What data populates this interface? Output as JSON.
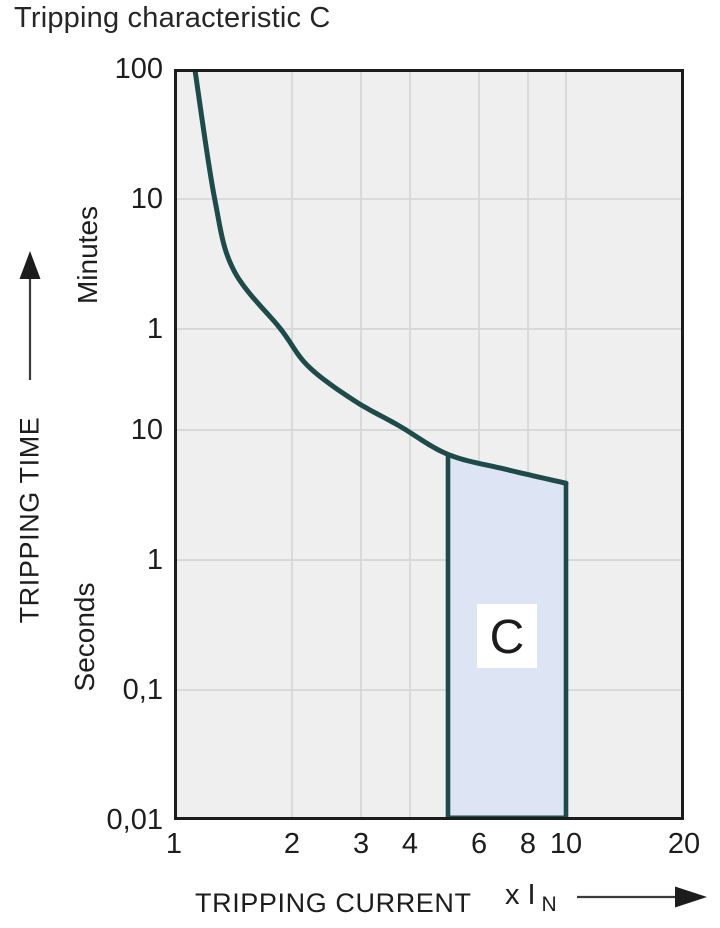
{
  "title": "Tripping characteristic C",
  "colors": {
    "curve": "#1e4b49",
    "region_fill": "#dde4f3",
    "region_border": "#1e4b49",
    "plot_bg": "#efefef",
    "gridline": "#d6d8d8",
    "frame": "#1c1c1c",
    "text": "#1d1d1d",
    "label_bg": "#ffffff"
  },
  "y_axis": {
    "title": "TRIPPING TIME",
    "unit_top": "Minutes",
    "unit_bottom": "Seconds"
  },
  "x_axis": {
    "title": "TRIPPING CURRENT",
    "unit": "x I",
    "unit_sub": "N"
  },
  "chart_data": {
    "type": "line",
    "title": "Tripping characteristic C",
    "xlabel": "TRIPPING CURRENT x IN",
    "ylabel": "TRIPPING TIME",
    "x_scale": "log",
    "y_scale": "log",
    "xlim": [
      1,
      20
    ],
    "ylim_seconds": [
      0.01,
      6000
    ],
    "grid": true,
    "x_ticks": [
      {
        "label": "1",
        "value": 1
      },
      {
        "label": "2",
        "value": 2
      },
      {
        "label": "3",
        "value": 3
      },
      {
        "label": "4",
        "value": 4
      },
      {
        "label": "6",
        "value": 6
      },
      {
        "label": "8",
        "value": 8
      },
      {
        "label": "10",
        "value": 10
      },
      {
        "label": "20",
        "value": 20
      }
    ],
    "y_ticks": [
      {
        "label": "100",
        "seconds": 6000,
        "unit": "minutes"
      },
      {
        "label": "10",
        "seconds": 600,
        "unit": "minutes"
      },
      {
        "label": "1",
        "seconds": 60,
        "unit": "minutes"
      },
      {
        "label": "10",
        "seconds": 10,
        "unit": "seconds"
      },
      {
        "label": "1",
        "seconds": 1,
        "unit": "seconds"
      },
      {
        "label": "0,1",
        "seconds": 0.1,
        "unit": "seconds"
      },
      {
        "label": "0,01",
        "seconds": 0.01,
        "unit": "seconds"
      }
    ],
    "series": [
      {
        "name": "C tripping curve",
        "points": [
          [
            1.13,
            6000
          ],
          [
            1.27,
            600
          ],
          [
            1.42,
            170
          ],
          [
            1.87,
            60
          ],
          [
            2.2,
            31
          ],
          [
            2.87,
            17
          ],
          [
            3.75,
            10.8
          ],
          [
            5,
            6.5
          ],
          [
            7,
            5.0
          ],
          [
            10,
            3.9
          ]
        ]
      }
    ],
    "region": {
      "label": "C",
      "x_start": 5,
      "x_end": 10,
      "y_bottom_seconds": 0.01,
      "y_top_at_x_start_seconds": 6.5,
      "y_top_at_x_end_seconds": 3.9,
      "top_follows_curve": true
    }
  }
}
